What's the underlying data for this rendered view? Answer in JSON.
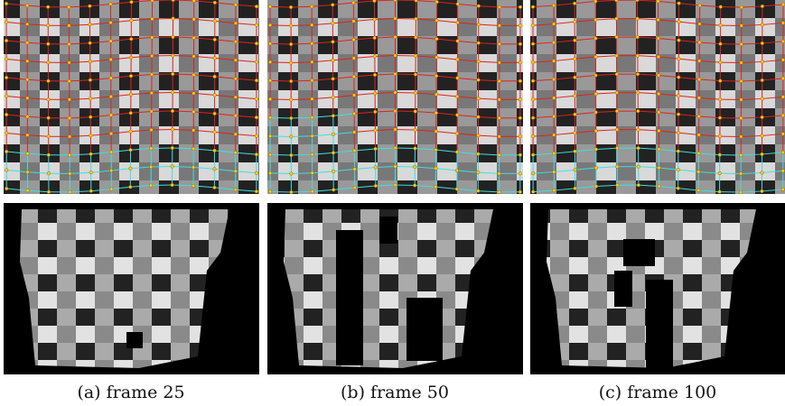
{
  "figure": {
    "captions": [
      "(a) frame 25",
      "(b) frame 50",
      "(c) frame 100"
    ]
  }
}
